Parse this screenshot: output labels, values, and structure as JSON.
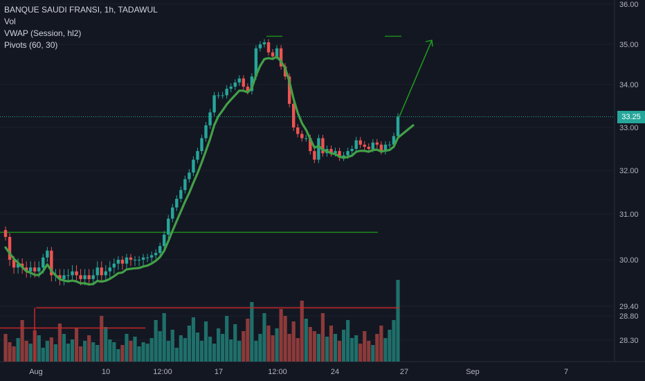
{
  "legend": {
    "symbol_line": "BANQUE SAUDI FRANSI, 1h, TADAWUL",
    "vol_label": "Vol",
    "vwap_label": "VWAP (Session, hl2)",
    "pivots_label": "Pivots (60, 30)"
  },
  "current_price_label": "33.25",
  "colors": {
    "background": "#131722",
    "up": "#26a69a",
    "down": "#ef5350",
    "vol_up": "#1f6f6a",
    "vol_down": "#8c3a3a",
    "vwap": "#43a047",
    "pivot_high": "#1b8a1b",
    "pivot_low": "#c62828",
    "arrow": "#1e9e1e",
    "current_line": "#26a69a",
    "grid": "#1e222d",
    "axis_text": "#b2b5be"
  },
  "chart_data": {
    "type": "candlestick",
    "y_axis": {
      "labels": [
        "36.00",
        "35.00",
        "34.00",
        "33.00",
        "32.00",
        "31.00",
        "30.00",
        "29.40",
        "28.80",
        "28.30"
      ],
      "values": [
        36.0,
        35.0,
        34.0,
        33.0,
        32.0,
        31.0,
        30.0,
        29.4,
        28.8,
        28.3
      ]
    },
    "x_axis": {
      "labels": [
        "Aug",
        "10",
        "12:00",
        "17",
        "12:00",
        "24",
        "27",
        "Sep",
        "7"
      ]
    },
    "current_price": 33.25,
    "candles_close": [
      30.5,
      30.0,
      29.9,
      29.95,
      29.9,
      29.85,
      29.9,
      29.85,
      29.9,
      30.05,
      30.2,
      29.8,
      29.8,
      29.75,
      29.8,
      29.8,
      29.85,
      29.8,
      29.75,
      29.8,
      29.75,
      29.8,
      29.9,
      29.8,
      29.85,
      29.9,
      29.95,
      30.0,
      29.95,
      30.05,
      30.0,
      30.0,
      30.0,
      30.05,
      30.05,
      30.1,
      30.15,
      30.3,
      30.55,
      30.9,
      31.15,
      31.35,
      31.55,
      31.8,
      31.95,
      32.25,
      32.45,
      32.75,
      33.05,
      33.35,
      33.75,
      33.75,
      33.75,
      33.9,
      33.95,
      34.05,
      34.15,
      33.95,
      33.85,
      34.2,
      34.9,
      35.0,
      35.05,
      34.8,
      34.7,
      34.9,
      34.45,
      34.2,
      33.55,
      33.0,
      32.85,
      32.75,
      32.75,
      32.45,
      32.25,
      32.75,
      32.4,
      32.5,
      32.4,
      32.45,
      32.3,
      32.35,
      32.45,
      32.5,
      32.7,
      32.6,
      32.55,
      32.5,
      32.65,
      32.6,
      32.45,
      32.6,
      32.6,
      32.8,
      33.25
    ],
    "candles_direction_note": "green = close above open, red = close below open",
    "pivot_high_levels": [
      35.2,
      35.2
    ],
    "pivot_low_levels": [
      30.6,
      29.3,
      28.55
    ],
    "vwap": "curve following price, ending near 33.05"
  }
}
